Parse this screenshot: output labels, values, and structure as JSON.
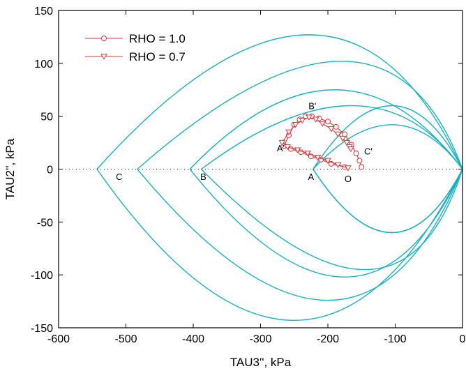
{
  "chart_data": {
    "type": "line",
    "title": "",
    "xlabel": "TAU3'', kPa",
    "ylabel": "TAU2'', kPa",
    "xlim": [
      -600,
      0
    ],
    "ylim": [
      -150,
      150
    ],
    "xticks": [
      -600,
      -500,
      -400,
      -300,
      -200,
      -100,
      0
    ],
    "yticks": [
      -150,
      -100,
      -50,
      0,
      50,
      100,
      150
    ],
    "grid": false,
    "legend_position": "top-left",
    "zero_line": {
      "y": 0,
      "style": "dotted"
    },
    "colors": {
      "envelope": "#17b2c2",
      "path": "#e0323c"
    },
    "envelopes": [
      {
        "tip": -543,
        "upper_peak": [
          -228,
          127
        ],
        "lower_peak": [
          -250,
          -143
        ]
      },
      {
        "tip": -483,
        "upper_peak": [
          -180,
          102
        ],
        "lower_peak": [
          -200,
          -124
        ]
      },
      {
        "tip": -405,
        "upper_peak": [
          -190,
          75
        ],
        "lower_peak": [
          -175,
          -102
        ]
      },
      {
        "tip": -388,
        "upper_peak": [
          -165,
          60
        ],
        "lower_peak": [
          -145,
          -95
        ]
      },
      {
        "tip": -222,
        "upper_peak": [
          -105,
          60
        ],
        "lower_peak": [
          -105,
          -60
        ]
      },
      {
        "tip": -222,
        "upper_peak": [
          -105,
          42
        ],
        "lower_peak": [
          -105,
          -60
        ]
      }
    ],
    "series": [
      {
        "name": "RHO = 1.0",
        "marker": "circle",
        "x": [
          -175,
          -195,
          -210,
          -225,
          -240,
          -255,
          -265,
          -258,
          -250,
          -242,
          -233,
          -224,
          -213,
          -200,
          -188,
          -175,
          -165,
          -158,
          -153,
          -150
        ],
        "y": [
          2,
          5,
          9,
          12,
          16,
          19,
          22,
          32,
          42,
          47,
          50,
          50,
          48,
          45,
          40,
          33,
          23,
          15,
          8,
          2
        ]
      },
      {
        "name": "RHO = 0.7",
        "marker": "triangle",
        "x": [
          -170,
          -185,
          -200,
          -215,
          -230,
          -245,
          -260,
          -268,
          -258,
          -248,
          -238,
          -228,
          -218,
          -208,
          -195,
          -185,
          -178,
          -172,
          -168,
          -166
        ],
        "y": [
          1,
          4,
          8,
          11,
          15,
          18,
          21,
          25,
          35,
          42,
          46,
          49,
          47,
          43,
          38,
          33,
          29,
          25,
          21,
          19
        ]
      }
    ],
    "annotations": [
      {
        "text": "C",
        "x": -510,
        "y": -7
      },
      {
        "text": "B",
        "x": -385,
        "y": -7
      },
      {
        "text": "A",
        "x": -225,
        "y": -7
      },
      {
        "text": "O",
        "x": -170,
        "y": -9
      },
      {
        "text": "A'",
        "x": -270,
        "y": 20
      },
      {
        "text": "B'",
        "x": -223,
        "y": 60
      },
      {
        "text": "C'",
        "x": -140,
        "y": 17
      }
    ]
  }
}
